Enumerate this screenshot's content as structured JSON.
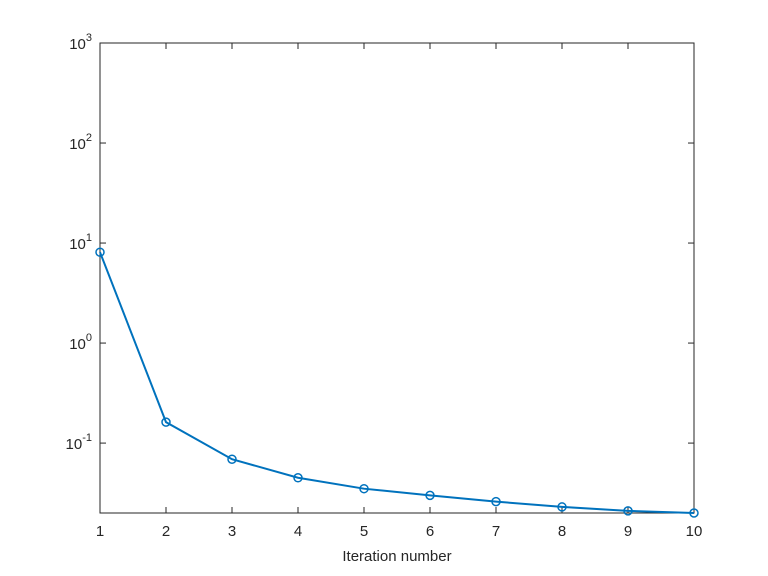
{
  "chart_data": {
    "type": "line",
    "xlabel": "Iteration number",
    "x": [
      1,
      2,
      3,
      4,
      5,
      6,
      7,
      8,
      9,
      10
    ],
    "series": [
      {
        "color": "#0072bd",
        "marker": "o",
        "values": [
          8.1,
          0.162,
          0.069,
          0.045,
          0.035,
          0.03,
          0.026,
          0.023,
          0.021,
          0.02
        ]
      }
    ],
    "xlim": [
      1,
      10
    ],
    "xticks": [
      1,
      2,
      3,
      4,
      5,
      6,
      7,
      8,
      9,
      10
    ],
    "ylim": [
      0.02,
      1000
    ],
    "yscale": "log",
    "yticks": [
      {
        "value": 0.1,
        "label": "10^-1"
      },
      {
        "value": 1,
        "label": "10^0"
      },
      {
        "value": 10,
        "label": "10^1"
      },
      {
        "value": 100,
        "label": "10^2"
      },
      {
        "value": 1000,
        "label": "10^3"
      }
    ],
    "grid": false
  }
}
